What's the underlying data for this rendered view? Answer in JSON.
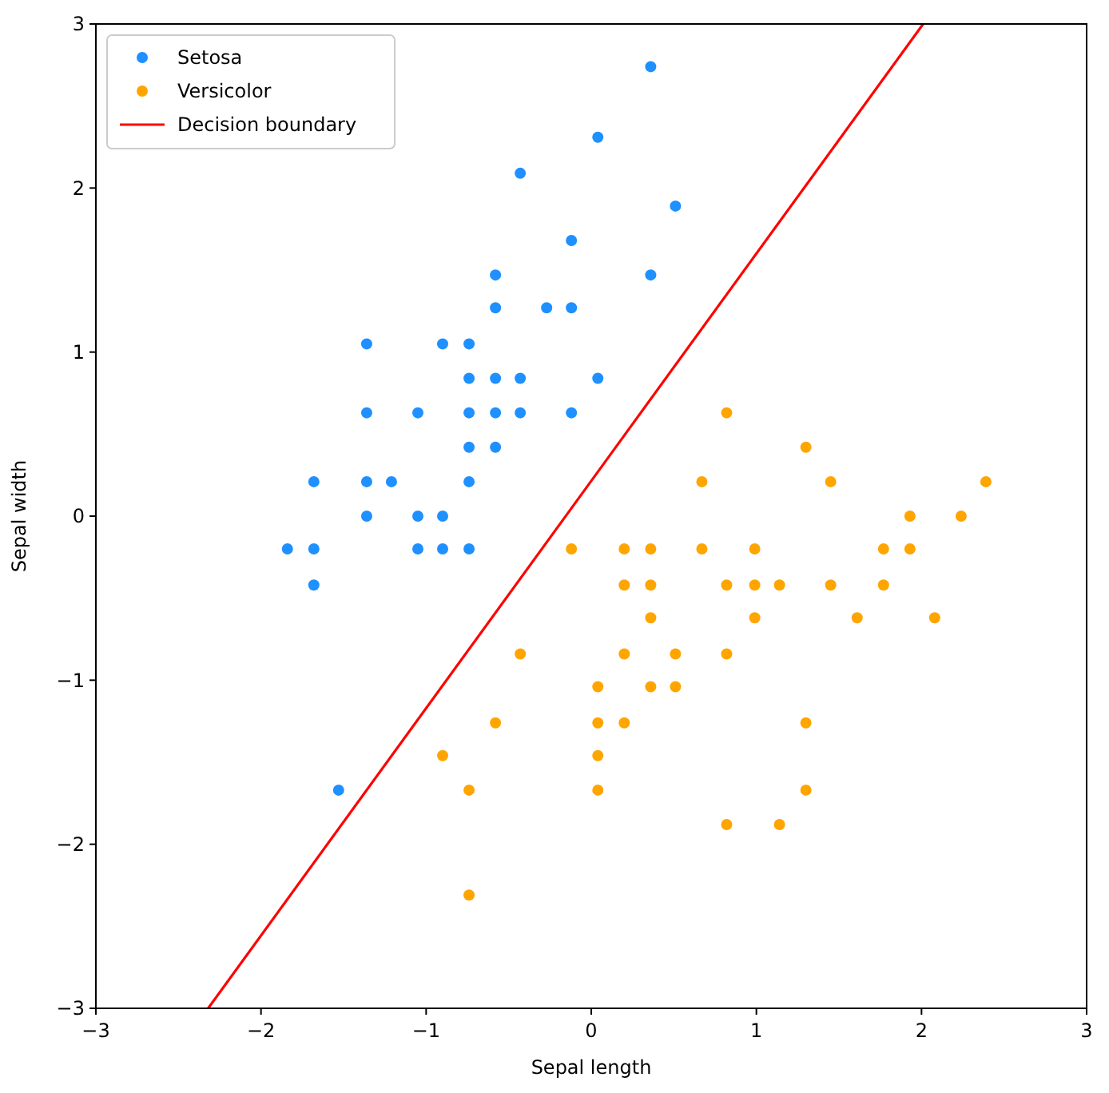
{
  "chart_data": {
    "type": "scatter",
    "xlabel": "Sepal length",
    "ylabel": "Sepal width",
    "xlim": [
      -3,
      3
    ],
    "ylim": [
      -3,
      3
    ],
    "xticks": [
      {
        "value": -3,
        "label": "−3"
      },
      {
        "value": -2,
        "label": "−2"
      },
      {
        "value": -1,
        "label": "−1"
      },
      0,
      1,
      2,
      3
    ],
    "yticks": [
      {
        "value": -3,
        "label": "−3"
      },
      {
        "value": -2,
        "label": "−2"
      },
      {
        "value": -1,
        "label": "−1"
      },
      0,
      1,
      2,
      3
    ],
    "legend": "top left",
    "grid": false,
    "series": [
      {
        "name": "Setosa",
        "marker": "circle",
        "color": "#1e90ff",
        "x": [
          -1.84,
          -1.68,
          -1.68,
          -1.68,
          -1.53,
          -1.36,
          -1.36,
          -1.36,
          -1.36,
          -1.21,
          -1.05,
          -1.05,
          -1.05,
          -0.9,
          -0.9,
          -0.9,
          -0.74,
          -0.74,
          -0.74,
          -0.74,
          -0.74,
          -0.74,
          -0.58,
          -0.58,
          -0.58,
          -0.58,
          -0.58,
          -0.43,
          -0.43,
          -0.43,
          -0.27,
          -0.12,
          -0.12,
          -0.12,
          0.04,
          0.04,
          0.36,
          0.36,
          0.51
        ],
        "values": [
          -0.2,
          -0.2,
          -0.42,
          0.21,
          -1.67,
          0,
          0.21,
          0.63,
          1.05,
          0.21,
          0.63,
          0,
          -0.2,
          -0.2,
          0,
          1.05,
          1.05,
          0.84,
          0.63,
          0.42,
          0.21,
          -0.2,
          0.84,
          0.63,
          0.42,
          1.27,
          1.47,
          0.84,
          0.63,
          2.09,
          1.27,
          1.27,
          1.68,
          0.63,
          0.84,
          2.31,
          2.74,
          1.47,
          1.89
        ]
      },
      {
        "name": "Versicolor",
        "marker": "circle",
        "color": "#ffa500",
        "x": [
          0.82,
          1.3,
          0.67,
          1.45,
          2.39,
          1.93,
          2.24,
          -0.12,
          0.2,
          0.36,
          0.67,
          0.99,
          1.77,
          1.93,
          0.2,
          0.36,
          0.82,
          0.99,
          1.14,
          1.45,
          1.77,
          0.36,
          0.99,
          1.61,
          2.08,
          -0.43,
          0.2,
          0.51,
          0.82,
          0.04,
          0.36,
          0.51,
          -0.58,
          0.04,
          0.2,
          1.3,
          -0.9,
          0.04,
          -0.74,
          0.04,
          1.3,
          0.82,
          1.14,
          -0.74
        ],
        "values": [
          0.63,
          0.42,
          0.21,
          0.21,
          0.21,
          0,
          0,
          -0.2,
          -0.2,
          -0.2,
          -0.2,
          -0.2,
          -0.2,
          -0.2,
          -0.42,
          -0.42,
          -0.42,
          -0.42,
          -0.42,
          -0.42,
          -0.42,
          -0.62,
          -0.62,
          -0.62,
          -0.62,
          -0.84,
          -0.84,
          -0.84,
          -0.84,
          -1.04,
          -1.04,
          -1.04,
          -1.26,
          -1.26,
          -1.26,
          -1.26,
          -1.46,
          -1.46,
          -1.67,
          -1.67,
          -1.67,
          -1.88,
          -1.88,
          -2.31
        ]
      },
      {
        "name": "Decision boundary",
        "type": "line",
        "marker": "none",
        "color": "#ff0000",
        "x": [
          -2.32,
          2.01
        ],
        "values": [
          -3,
          3
        ]
      }
    ]
  }
}
